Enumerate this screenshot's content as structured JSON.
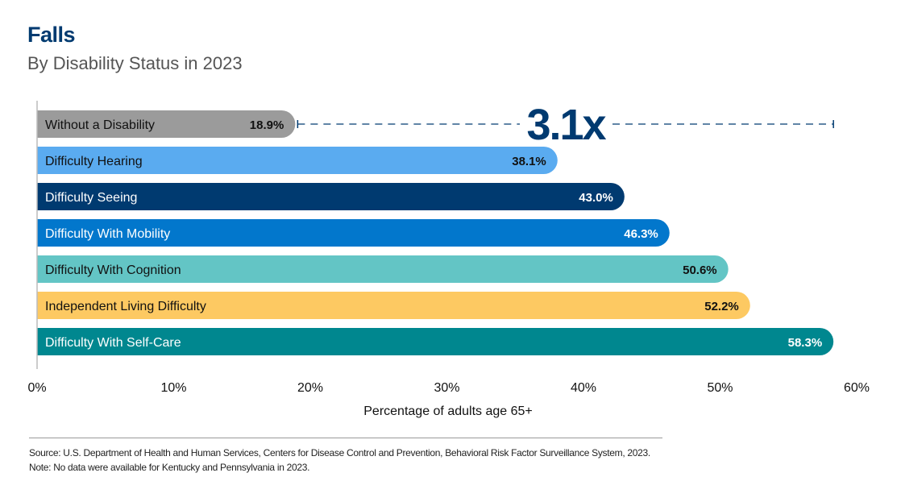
{
  "header": {
    "title": "Falls",
    "subtitle": "By Disability Status in 2023"
  },
  "chart_data": {
    "type": "bar",
    "orientation": "horizontal",
    "categories": [
      "Without a Disability",
      "Difficulty Hearing",
      "Difficulty Seeing",
      "Difficulty With Mobility",
      "Difficulty With Cognition",
      "Independent Living Difficulty",
      "Difficulty With Self-Care"
    ],
    "values": [
      18.9,
      38.1,
      43.0,
      46.3,
      50.6,
      52.2,
      58.3
    ],
    "data_labels": [
      "18.9%",
      "38.1%",
      "43.0%",
      "46.3%",
      "50.6%",
      "52.2%",
      "58.3%"
    ],
    "colors": [
      "#9b9b9b",
      "#5aabf0",
      "#003a70",
      "#0277cc",
      "#63c5c5",
      "#fdc962",
      "#00878f"
    ],
    "label_colors": [
      "#111111",
      "#111111",
      "#ffffff",
      "#ffffff",
      "#111111",
      "#111111",
      "#ffffff"
    ],
    "xlim": [
      0,
      60
    ],
    "xticks": [
      "0%",
      "10%",
      "20%",
      "30%",
      "40%",
      "50%",
      "60%"
    ],
    "xlabel": "Percentage of adults age 65+",
    "annotation": {
      "text": "3.1x",
      "from": 18.9,
      "to": 58.3,
      "color": "#003a70"
    },
    "grid": false
  },
  "footer": {
    "source": "Source: U.S. Department of Health and Human Services, Centers for Disease Control and Prevention, Behavioral Risk Factor Surveillance System, 2023.",
    "note": "Note: No data were available for Kentucky and Pennsylvania in 2023."
  }
}
